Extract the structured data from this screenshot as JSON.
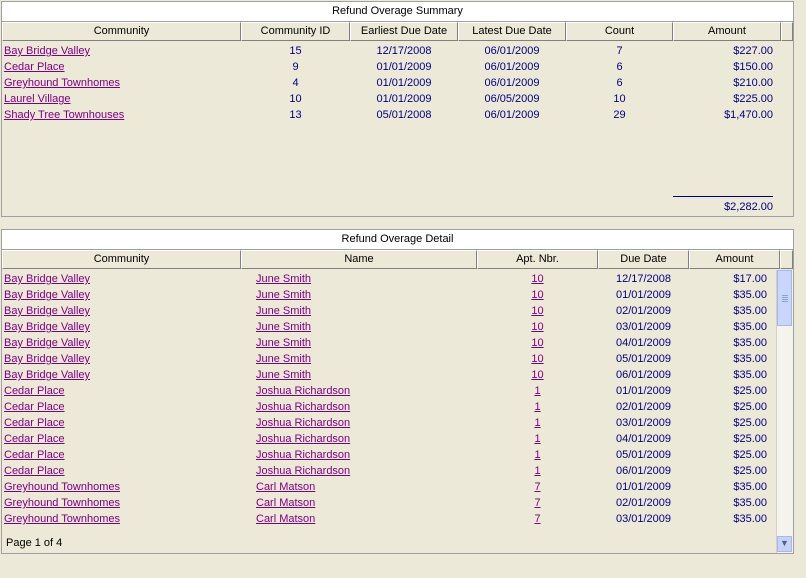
{
  "summary": {
    "title": "Refund Overage Summary",
    "columns": [
      "Community",
      "Community ID",
      "Earliest Due Date",
      "Latest Due Date",
      "Count",
      "Amount"
    ],
    "rows": [
      {
        "community": "Bay Bridge Valley",
        "id": "15",
        "earliest": "12/17/2008",
        "latest": "06/01/2009",
        "count": "7",
        "amount": "$227.00"
      },
      {
        "community": "Cedar Place",
        "id": "9",
        "earliest": "01/01/2009",
        "latest": "06/01/2009",
        "count": "6",
        "amount": "$150.00"
      },
      {
        "community": "Greyhound Townhomes",
        "id": "4",
        "earliest": "01/01/2009",
        "latest": "06/01/2009",
        "count": "6",
        "amount": "$210.00"
      },
      {
        "community": "Laurel Village",
        "id": "10",
        "earliest": "01/01/2009",
        "latest": "06/05/2009",
        "count": "10",
        "amount": "$225.00"
      },
      {
        "community": "Shady Tree Townhouses",
        "id": "13",
        "earliest": "05/01/2008",
        "latest": "06/01/2009",
        "count": "29",
        "amount": "$1,470.00"
      }
    ],
    "total": "$2,282.00"
  },
  "detail": {
    "title": "Refund Overage Detail",
    "columns": [
      "Community",
      "Name",
      "Apt. Nbr.",
      "Due Date",
      "Amount"
    ],
    "rows": [
      {
        "community": "Bay Bridge Valley",
        "name": "June Smith",
        "apt": "10",
        "due": "12/17/2008",
        "amount": "$17.00"
      },
      {
        "community": "Bay Bridge Valley",
        "name": "June Smith",
        "apt": "10",
        "due": "01/01/2009",
        "amount": "$35.00"
      },
      {
        "community": "Bay Bridge Valley",
        "name": "June Smith",
        "apt": "10",
        "due": "02/01/2009",
        "amount": "$35.00"
      },
      {
        "community": "Bay Bridge Valley",
        "name": "June Smith",
        "apt": "10",
        "due": "03/01/2009",
        "amount": "$35.00"
      },
      {
        "community": "Bay Bridge Valley",
        "name": "June Smith",
        "apt": "10",
        "due": "04/01/2009",
        "amount": "$35.00"
      },
      {
        "community": "Bay Bridge Valley",
        "name": "June Smith",
        "apt": "10",
        "due": "05/01/2009",
        "amount": "$35.00"
      },
      {
        "community": "Bay Bridge Valley",
        "name": "June Smith",
        "apt": "10",
        "due": "06/01/2009",
        "amount": "$35.00"
      },
      {
        "community": "Cedar Place",
        "name": "Joshua Richardson",
        "apt": "1",
        "due": "01/01/2009",
        "amount": "$25.00"
      },
      {
        "community": "Cedar Place",
        "name": "Joshua Richardson",
        "apt": "1",
        "due": "02/01/2009",
        "amount": "$25.00"
      },
      {
        "community": "Cedar Place",
        "name": "Joshua Richardson",
        "apt": "1",
        "due": "03/01/2009",
        "amount": "$25.00"
      },
      {
        "community": "Cedar Place",
        "name": "Joshua Richardson",
        "apt": "1",
        "due": "04/01/2009",
        "amount": "$25.00"
      },
      {
        "community": "Cedar Place",
        "name": "Joshua Richardson",
        "apt": "1",
        "due": "05/01/2009",
        "amount": "$25.00"
      },
      {
        "community": "Cedar Place",
        "name": "Joshua Richardson",
        "apt": "1",
        "due": "06/01/2009",
        "amount": "$25.00"
      },
      {
        "community": "Greyhound Townhomes",
        "name": "Carl Matson",
        "apt": "7",
        "due": "01/01/2009",
        "amount": "$35.00"
      },
      {
        "community": "Greyhound Townhomes",
        "name": "Carl Matson",
        "apt": "7",
        "due": "02/01/2009",
        "amount": "$35.00"
      },
      {
        "community": "Greyhound Townhomes",
        "name": "Carl Matson",
        "apt": "7",
        "due": "03/01/2009",
        "amount": "$35.00"
      }
    ],
    "pager": "Page 1 of 4"
  }
}
